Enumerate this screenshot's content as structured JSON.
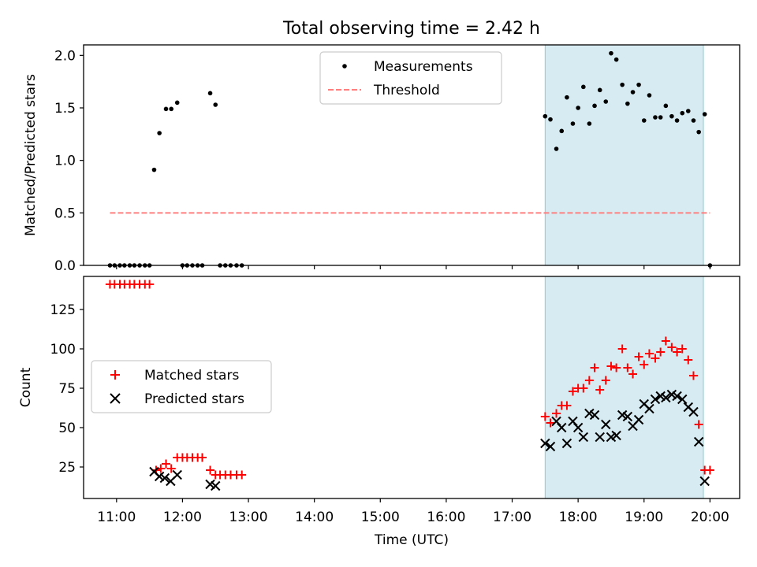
{
  "chart_data": [
    {
      "type": "scatter",
      "title": "Total observing time = 2.42 h",
      "xlabel": "",
      "ylabel": "Matched/Predicted stars",
      "xlim": [
        10.5,
        20.45
      ],
      "ylim": [
        0,
        2.1
      ],
      "yticks": [
        0.0,
        0.5,
        1.0,
        1.5,
        2.0
      ],
      "ytick_labels": [
        "0.0",
        "0.5",
        "1.0",
        "1.5",
        "2.0"
      ],
      "grid": false,
      "legend_position": "top-center",
      "highlight_span": [
        17.5,
        19.9
      ],
      "colors": {
        "measurement": "#000000",
        "threshold": "#ff7f7f",
        "highlight": "#add8e6"
      },
      "series": [
        {
          "name": "Measurements",
          "marker": "dot",
          "points": [
            [
              10.9,
              0
            ],
            [
              10.97,
              0
            ],
            [
              11.05,
              0
            ],
            [
              11.12,
              0
            ],
            [
              11.2,
              0
            ],
            [
              11.27,
              0
            ],
            [
              11.35,
              0
            ],
            [
              11.43,
              0
            ],
            [
              11.5,
              0
            ],
            [
              11.57,
              0.91
            ],
            [
              11.65,
              1.26
            ],
            [
              11.75,
              1.49
            ],
            [
              11.83,
              1.49
            ],
            [
              11.92,
              1.55
            ],
            [
              12.0,
              0
            ],
            [
              12.07,
              0
            ],
            [
              12.15,
              0
            ],
            [
              12.23,
              0
            ],
            [
              12.3,
              0
            ],
            [
              12.42,
              1.64
            ],
            [
              12.5,
              1.53
            ],
            [
              12.57,
              0
            ],
            [
              12.65,
              0
            ],
            [
              12.73,
              0
            ],
            [
              12.82,
              0
            ],
            [
              12.9,
              0
            ],
            [
              17.5,
              1.42
            ],
            [
              17.58,
              1.39
            ],
            [
              17.67,
              1.11
            ],
            [
              17.75,
              1.28
            ],
            [
              17.83,
              1.6
            ],
            [
              17.92,
              1.35
            ],
            [
              18.0,
              1.5
            ],
            [
              18.08,
              1.7
            ],
            [
              18.17,
              1.35
            ],
            [
              18.25,
              1.52
            ],
            [
              18.33,
              1.67
            ],
            [
              18.42,
              1.56
            ],
            [
              18.5,
              2.02
            ],
            [
              18.58,
              1.96
            ],
            [
              18.67,
              1.72
            ],
            [
              18.75,
              1.54
            ],
            [
              18.83,
              1.65
            ],
            [
              18.92,
              1.72
            ],
            [
              19.0,
              1.38
            ],
            [
              19.08,
              1.62
            ],
            [
              19.17,
              1.41
            ],
            [
              19.25,
              1.41
            ],
            [
              19.33,
              1.52
            ],
            [
              19.42,
              1.42
            ],
            [
              19.5,
              1.38
            ],
            [
              19.58,
              1.45
            ],
            [
              19.67,
              1.47
            ],
            [
              19.75,
              1.38
            ],
            [
              19.83,
              1.27
            ],
            [
              19.92,
              1.44
            ],
            [
              20.0,
              0
            ]
          ]
        },
        {
          "name": "Threshold",
          "style": "dashed",
          "x": [
            10.9,
            20.0
          ],
          "y": [
            0.5,
            0.5
          ]
        }
      ]
    },
    {
      "type": "scatter",
      "title": "",
      "xlabel": "Time (UTC)",
      "ylabel": "Count",
      "xlim": [
        10.5,
        20.45
      ],
      "ylim": [
        5,
        146
      ],
      "yticks": [
        25,
        50,
        75,
        100,
        125
      ],
      "ytick_labels": [
        "25",
        "50",
        "75",
        "100",
        "125"
      ],
      "xticks": [
        11,
        12,
        13,
        14,
        15,
        16,
        17,
        18,
        19,
        20
      ],
      "xtick_labels": [
        "11:00",
        "12:00",
        "13:00",
        "14:00",
        "15:00",
        "16:00",
        "17:00",
        "18:00",
        "19:00",
        "20:00"
      ],
      "grid": false,
      "legend_position": "center-left",
      "highlight_span": [
        17.5,
        19.9
      ],
      "colors": {
        "matched": "#ff0000",
        "predicted": "#000000",
        "highlight": "#add8e6"
      },
      "series": [
        {
          "name": "Matched stars",
          "marker": "plus",
          "points": [
            [
              10.9,
              141
            ],
            [
              10.97,
              141
            ],
            [
              11.05,
              141
            ],
            [
              11.12,
              141
            ],
            [
              11.2,
              141
            ],
            [
              11.27,
              141
            ],
            [
              11.35,
              141
            ],
            [
              11.43,
              141
            ],
            [
              11.5,
              141
            ],
            [
              11.6,
              23
            ],
            [
              11.67,
              24
            ],
            [
              11.75,
              27
            ],
            [
              11.83,
              24
            ],
            [
              11.92,
              31
            ],
            [
              12.0,
              31
            ],
            [
              12.07,
              31
            ],
            [
              12.15,
              31
            ],
            [
              12.23,
              31
            ],
            [
              12.3,
              31
            ],
            [
              12.42,
              23
            ],
            [
              12.5,
              20
            ],
            [
              12.57,
              20
            ],
            [
              12.65,
              20
            ],
            [
              12.73,
              20
            ],
            [
              12.82,
              20
            ],
            [
              12.9,
              20
            ],
            [
              17.5,
              57
            ],
            [
              17.58,
              53
            ],
            [
              17.67,
              59
            ],
            [
              17.75,
              64
            ],
            [
              17.83,
              64
            ],
            [
              17.92,
              73
            ],
            [
              18.0,
              75
            ],
            [
              18.08,
              75
            ],
            [
              18.17,
              80
            ],
            [
              18.25,
              88
            ],
            [
              18.33,
              74
            ],
            [
              18.42,
              80
            ],
            [
              18.5,
              89
            ],
            [
              18.58,
              88
            ],
            [
              18.67,
              100
            ],
            [
              18.75,
              88
            ],
            [
              18.83,
              84
            ],
            [
              18.92,
              95
            ],
            [
              19.0,
              90
            ],
            [
              19.08,
              97
            ],
            [
              19.17,
              94
            ],
            [
              19.25,
              98
            ],
            [
              19.33,
              105
            ],
            [
              19.42,
              101
            ],
            [
              19.5,
              98
            ],
            [
              19.58,
              100
            ],
            [
              19.67,
              93
            ],
            [
              19.75,
              83
            ],
            [
              19.83,
              52
            ],
            [
              19.92,
              23
            ],
            [
              20.0,
              23
            ]
          ]
        },
        {
          "name": "Predicted stars",
          "marker": "x",
          "points": [
            [
              11.57,
              22
            ],
            [
              11.65,
              19
            ],
            [
              11.73,
              18
            ],
            [
              11.82,
              16
            ],
            [
              11.92,
              20
            ],
            [
              12.42,
              14
            ],
            [
              12.5,
              13
            ],
            [
              17.5,
              40
            ],
            [
              17.58,
              38
            ],
            [
              17.67,
              54
            ],
            [
              17.75,
              50
            ],
            [
              17.83,
              40
            ],
            [
              17.92,
              54
            ],
            [
              18.0,
              50
            ],
            [
              18.08,
              44
            ],
            [
              18.17,
              59
            ],
            [
              18.25,
              58
            ],
            [
              18.33,
              44
            ],
            [
              18.42,
              52
            ],
            [
              18.5,
              44
            ],
            [
              18.58,
              45
            ],
            [
              18.67,
              58
            ],
            [
              18.75,
              57
            ],
            [
              18.83,
              51
            ],
            [
              18.92,
              55
            ],
            [
              19.0,
              65
            ],
            [
              19.08,
              62
            ],
            [
              19.17,
              68
            ],
            [
              19.25,
              70
            ],
            [
              19.33,
              69
            ],
            [
              19.42,
              71
            ],
            [
              19.5,
              70
            ],
            [
              19.58,
              68
            ],
            [
              19.67,
              63
            ],
            [
              19.75,
              60
            ],
            [
              19.83,
              41
            ],
            [
              19.92,
              16
            ]
          ]
        }
      ]
    }
  ]
}
